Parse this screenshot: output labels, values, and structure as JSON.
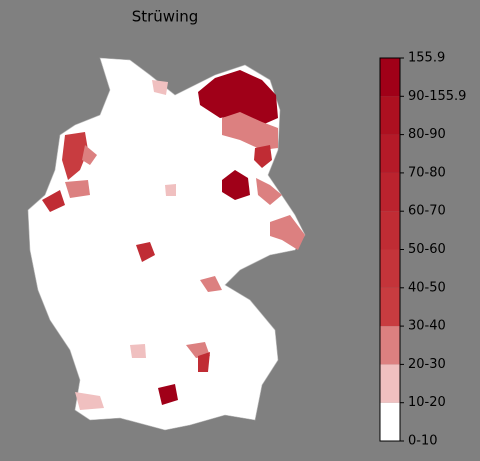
{
  "title": "Strüwing",
  "legend": {
    "labels": [
      "0-10",
      "10-20",
      "20-30",
      "30-40",
      "40-50",
      "50-60",
      "60-70",
      "70-80",
      "80-90",
      "90-155.9",
      "155.9"
    ],
    "colors": [
      "#ffffff",
      "#f0c0c0",
      "#dc8080",
      "#c83c40",
      "#c4343a",
      "#c02c34",
      "#bb232e",
      "#b51a28",
      "#ad1020",
      "#a00018"
    ]
  }
}
